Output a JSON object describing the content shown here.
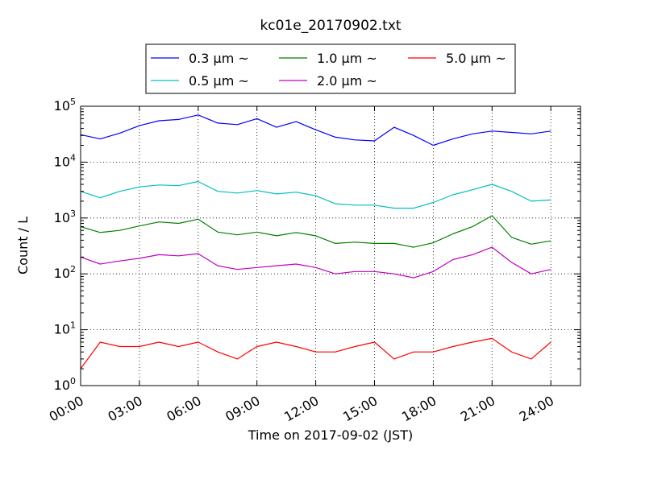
{
  "chart_data": {
    "type": "line",
    "title": "kc01e_20170902.txt",
    "xlabel": "Time on 2017-09-02 (JST)",
    "ylabel": "Count / L",
    "y_scale": "log",
    "ylim": [
      1,
      100000
    ],
    "xlim": [
      "00:00",
      "24:30"
    ],
    "grid": true,
    "legend_position": "top-center",
    "x_ticks": [
      "00:00",
      "03:00",
      "06:00",
      "09:00",
      "12:00",
      "15:00",
      "18:00",
      "21:00",
      "24:00"
    ],
    "y_ticks": [
      {
        "base": "10",
        "exp": "0",
        "value": 1
      },
      {
        "base": "10",
        "exp": "1",
        "value": 10
      },
      {
        "base": "10",
        "exp": "2",
        "value": 100
      },
      {
        "base": "10",
        "exp": "3",
        "value": 1000
      },
      {
        "base": "10",
        "exp": "4",
        "value": 10000
      },
      {
        "base": "10",
        "exp": "5",
        "value": 100000
      }
    ],
    "x": [
      "00:00",
      "01:00",
      "02:00",
      "03:00",
      "04:00",
      "05:00",
      "06:00",
      "07:00",
      "08:00",
      "09:00",
      "10:00",
      "11:00",
      "12:00",
      "13:00",
      "14:00",
      "15:00",
      "16:00",
      "17:00",
      "18:00",
      "19:00",
      "20:00",
      "21:00",
      "22:00",
      "23:00",
      "24:00"
    ],
    "series": [
      {
        "name": "0.3 μm ~",
        "color": "#0000ff",
        "values": [
          31000,
          26000,
          33000,
          45000,
          55000,
          58000,
          70000,
          50000,
          47000,
          60000,
          42000,
          53000,
          38000,
          28000,
          25000,
          24000,
          42000,
          30000,
          20000,
          26000,
          32000,
          36000,
          34000,
          32000,
          36000
        ]
      },
      {
        "name": "0.5 μm ~",
        "color": "#00bfbf",
        "values": [
          3000,
          2300,
          3000,
          3600,
          3900,
          3800,
          4500,
          3000,
          2800,
          3100,
          2700,
          2900,
          2500,
          1800,
          1700,
          1700,
          1500,
          1500,
          1900,
          2600,
          3200,
          4000,
          3000,
          2000,
          2100
        ]
      },
      {
        "name": "1.0 μm ~",
        "color": "#008000",
        "values": [
          700,
          550,
          600,
          720,
          850,
          800,
          950,
          560,
          500,
          560,
          480,
          550,
          480,
          350,
          370,
          350,
          350,
          300,
          360,
          520,
          700,
          1100,
          450,
          340,
          390
        ]
      },
      {
        "name": "2.0 μm ~",
        "color": "#bf00bf",
        "values": [
          200,
          150,
          170,
          190,
          220,
          210,
          230,
          140,
          120,
          130,
          140,
          150,
          130,
          100,
          110,
          110,
          100,
          85,
          110,
          180,
          220,
          300,
          160,
          100,
          120
        ]
      },
      {
        "name": "5.0 μm ~",
        "color": "#ff0000",
        "values": [
          2,
          6,
          5,
          5,
          6,
          5,
          6,
          4,
          3,
          5,
          6,
          5,
          4,
          4,
          5,
          6,
          3,
          4,
          4,
          5,
          6,
          7,
          4,
          3,
          6
        ]
      }
    ]
  }
}
